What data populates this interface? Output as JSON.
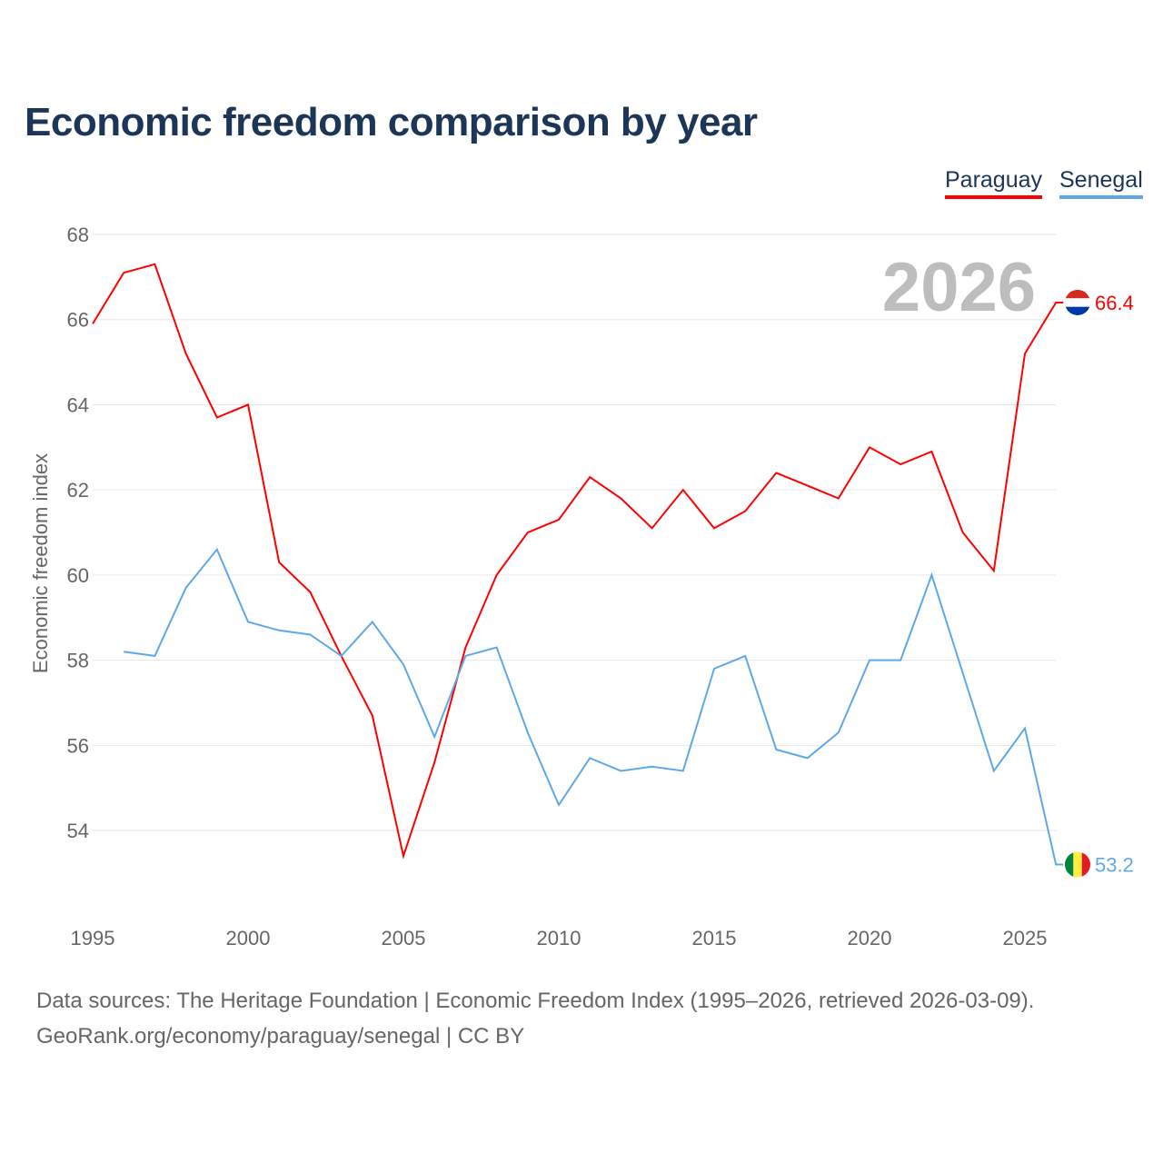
{
  "chart_data": {
    "type": "line",
    "title": "Economic freedom comparison by year",
    "ylabel": "Economic freedom index",
    "xlabel": "",
    "ylim": [
      53,
      68.5
    ],
    "xlim": [
      1995,
      2026
    ],
    "yticks": [
      54,
      56,
      58,
      60,
      62,
      64,
      66,
      68
    ],
    "xticks": [
      1995,
      2000,
      2005,
      2010,
      2015,
      2020,
      2025
    ],
    "grid": true,
    "legend_position": "top-right",
    "year_watermark": "2026",
    "series": [
      {
        "name": "Paraguay",
        "color": "#ff0000",
        "end_label": "66.4",
        "start_year": 1995,
        "values": [
          65.9,
          67.1,
          67.3,
          65.2,
          63.7,
          64.0,
          60.3,
          59.6,
          58.1,
          56.7,
          53.4,
          55.6,
          58.3,
          60.0,
          61.0,
          61.3,
          62.3,
          61.8,
          61.1,
          62.0,
          61.1,
          61.5,
          62.4,
          62.1,
          61.8,
          63.0,
          62.6,
          62.9,
          61.0,
          60.1,
          65.2,
          66.4
        ]
      },
      {
        "name": "Senegal",
        "color": "#5fa8e8",
        "end_label": "53.2",
        "start_year": 1996,
        "values": [
          58.2,
          58.1,
          59.7,
          60.6,
          58.9,
          58.7,
          58.6,
          58.1,
          58.9,
          57.9,
          56.2,
          58.1,
          58.3,
          56.3,
          54.6,
          55.7,
          55.4,
          55.5,
          55.4,
          57.8,
          58.1,
          55.9,
          55.7,
          56.3,
          58.0,
          58.0,
          60.0,
          57.7,
          55.4,
          56.4,
          53.2
        ]
      }
    ]
  },
  "footer": {
    "line1": "Data sources: The Heritage Foundation | Economic Freedom Index (1995–2026, retrieved 2026-03-09).",
    "line2": "GeoRank.org/economy/paraguay/senegal | CC BY"
  }
}
